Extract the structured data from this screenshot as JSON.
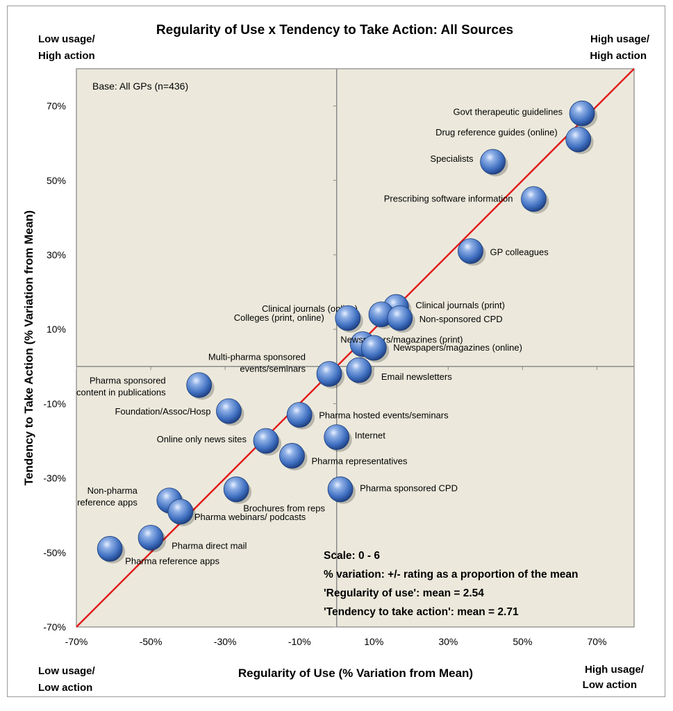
{
  "chart_data": {
    "type": "scatter",
    "title": "Regularity of Use x Tendency to Take Action: All Sources",
    "xlabel": "Regularity of Use (% Variation from Mean)",
    "ylabel": "Tendency to Take Action (% Variation from Mean)",
    "xlim": [
      -70,
      80
    ],
    "ylim": [
      -70,
      80
    ],
    "x_ticks": [
      -70,
      -50,
      -30,
      -10,
      10,
      30,
      50,
      70
    ],
    "y_ticks": [
      -70,
      -50,
      -30,
      -10,
      10,
      30,
      50,
      70
    ],
    "x_tick_labels": [
      "-70%",
      "-50%",
      "-30%",
      "-10%",
      "10%",
      "30%",
      "50%",
      "70%"
    ],
    "y_tick_labels": [
      "-70%",
      "-50%",
      "-30%",
      "-10%",
      "10%",
      "30%",
      "50%",
      "70%"
    ],
    "reference_line": {
      "type": "diagonal y=x",
      "color": "#e31b1b"
    },
    "quadrant_lines": {
      "x": 0,
      "y": 0
    },
    "grid": false,
    "marker_color": "#4f7fc8",
    "plot_background": "#ece9dc",
    "base_note": "Base: All GPs (n=436)",
    "quadrant_labels": {
      "top_left": [
        "Low usage/",
        "High action"
      ],
      "top_right": [
        "High usage/",
        "High action"
      ],
      "bottom_left": [
        "Low usage/",
        "Low action"
      ],
      "bottom_right": [
        "High usage/",
        "Low action"
      ]
    },
    "notes": [
      "Scale:  0 - 6",
      "% variation: +/- rating as a proportion of the mean",
      "'Regularity of use':  mean =  2.54",
      "'Tendency to take action':  mean = 2.71"
    ],
    "points": [
      {
        "label": [
          "Govt therapeutic guidelines"
        ],
        "x": 66,
        "y": 68
      },
      {
        "label": [
          "Drug reference guides (online)"
        ],
        "x": 65,
        "y": 61
      },
      {
        "label": [
          "Specialists"
        ],
        "x": 42,
        "y": 55
      },
      {
        "label": [
          "Prescribing software information"
        ],
        "x": 53,
        "y": 45
      },
      {
        "label": [
          "GP colleagues"
        ],
        "x": 36,
        "y": 31
      },
      {
        "label": [
          "Clinical journals (print)"
        ],
        "x": 16,
        "y": 16
      },
      {
        "label": [
          "Clinical journals (online)"
        ],
        "x": 12,
        "y": 14
      },
      {
        "label": [
          "Colleges (print, online)"
        ],
        "x": 3,
        "y": 13
      },
      {
        "label": [
          "Non-sponsored CPD"
        ],
        "x": 17,
        "y": 13
      },
      {
        "label": [
          "Newspapers/magazines (print)"
        ],
        "x": 7,
        "y": 6
      },
      {
        "label": [
          "Newspapers/magazines (online)"
        ],
        "x": 10,
        "y": 5
      },
      {
        "label": [
          "Multi-pharma sponsored",
          "events/seminars"
        ],
        "x": -2,
        "y": -2
      },
      {
        "label": [
          "Email newsletters"
        ],
        "x": 6,
        "y": -1
      },
      {
        "label": [
          "Pharma sponsored",
          "content in publications"
        ],
        "x": -37,
        "y": -5
      },
      {
        "label": [
          "Foundation/Assoc/Hosp"
        ],
        "x": -29,
        "y": -12
      },
      {
        "label": [
          "Pharma hosted events/seminars"
        ],
        "x": -10,
        "y": -13
      },
      {
        "label": [
          "Online only news sites"
        ],
        "x": -19,
        "y": -20
      },
      {
        "label": [
          "Internet"
        ],
        "x": 0,
        "y": -19
      },
      {
        "label": [
          "Pharma representatives"
        ],
        "x": -12,
        "y": -24
      },
      {
        "label": [
          "Brochures from reps"
        ],
        "x": -27,
        "y": -33
      },
      {
        "label": [
          "Pharma sponsored CPD"
        ],
        "x": 1,
        "y": -33
      },
      {
        "label": [
          "Non-pharma",
          "reference apps"
        ],
        "x": -45,
        "y": -36
      },
      {
        "label": [
          "Pharma webinars/ podcasts"
        ],
        "x": -42,
        "y": -39
      },
      {
        "label": [
          "Pharma direct mail"
        ],
        "x": -50,
        "y": -46
      },
      {
        "label": [
          "Pharma reference apps"
        ],
        "x": -61,
        "y": -49
      }
    ]
  }
}
